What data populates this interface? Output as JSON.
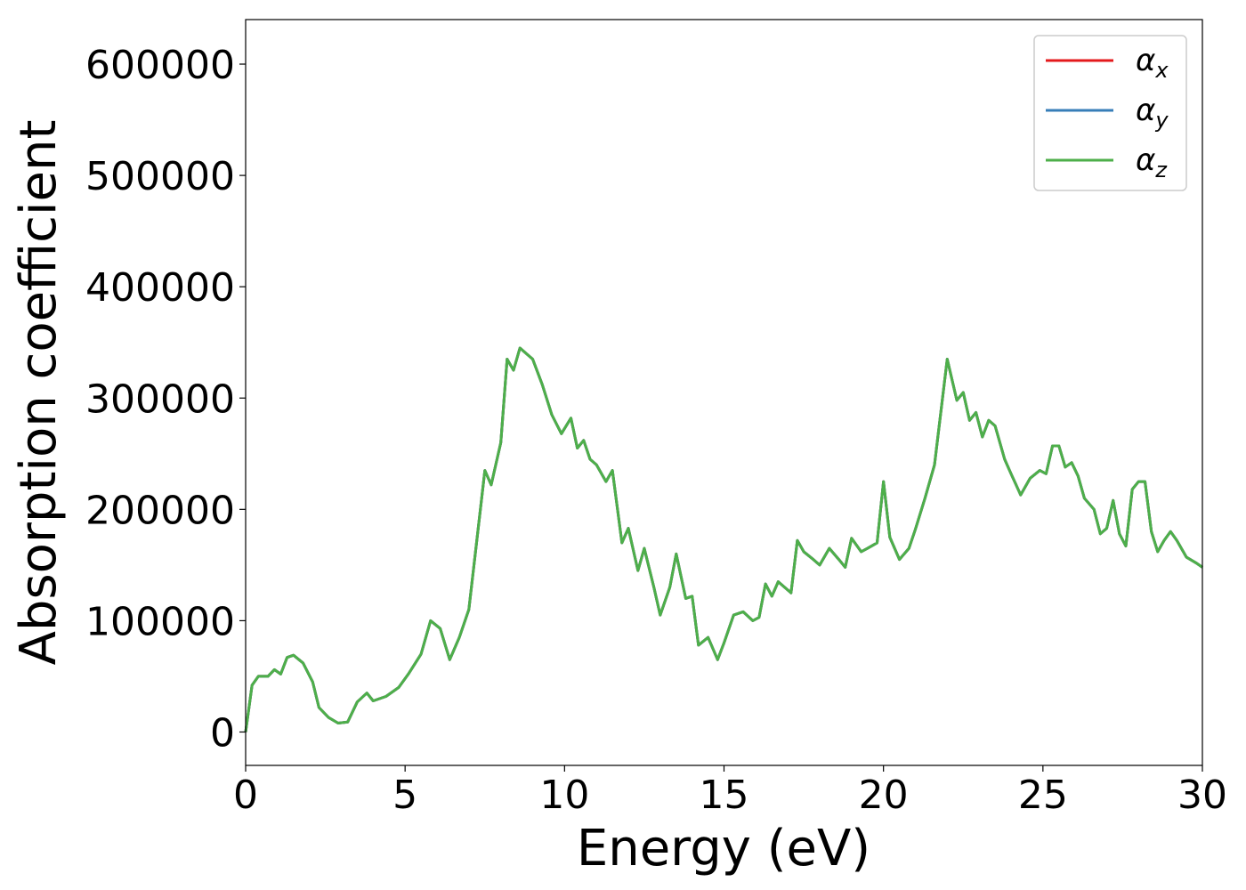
{
  "chart_data": {
    "type": "line",
    "title": "",
    "xlabel": "Energy (eV)",
    "ylabel": "Absorption coefficient",
    "xlim": [
      0,
      30
    ],
    "ylim": [
      -30000,
      640000
    ],
    "xticks": [
      "0",
      "5",
      "10",
      "15",
      "20",
      "25",
      "30"
    ],
    "yticks": [
      "0",
      "100000",
      "200000",
      "300000",
      "400000",
      "500000",
      "600000"
    ],
    "grid": false,
    "legend_position": "top-right",
    "colors": {
      "alpha_x": "#e41a1c",
      "alpha_y": "#377eb8",
      "alpha_z": "#4daf4a"
    },
    "x": [
      0,
      0.2,
      0.4,
      0.7,
      0.9,
      1.1,
      1.3,
      1.5,
      1.8,
      2.1,
      2.3,
      2.6,
      2.9,
      3.2,
      3.5,
      3.8,
      4.0,
      4.4,
      4.8,
      5.1,
      5.5,
      5.8,
      6.1,
      6.4,
      6.7,
      7.0,
      7.2,
      7.5,
      7.7,
      8.0,
      8.2,
      8.4,
      8.6,
      8.8,
      9.0,
      9.3,
      9.6,
      9.9,
      10.2,
      10.4,
      10.6,
      10.8,
      11.0,
      11.3,
      11.5,
      11.8,
      12.0,
      12.3,
      12.5,
      12.8,
      13.0,
      13.3,
      13.5,
      13.8,
      14.0,
      14.2,
      14.5,
      14.8,
      15.0,
      15.3,
      15.6,
      15.9,
      16.1,
      16.3,
      16.5,
      16.7,
      16.9,
      17.1,
      17.3,
      17.5,
      17.8,
      18.0,
      18.3,
      18.6,
      18.8,
      19.0,
      19.3,
      19.5,
      19.8,
      20.0,
      20.2,
      20.5,
      20.8,
      21.0,
      21.3,
      21.6,
      22.0,
      22.3,
      22.5,
      22.7,
      22.9,
      23.1,
      23.3,
      23.5,
      23.8,
      24.0,
      24.3,
      24.6,
      24.9,
      25.1,
      25.3,
      25.5,
      25.7,
      25.9,
      26.1,
      26.3,
      26.6,
      26.8,
      27.0,
      27.2,
      27.4,
      27.6,
      27.8,
      28.0,
      28.2,
      28.4,
      28.6,
      28.8,
      29.0,
      29.2,
      29.5,
      29.8,
      30.0
    ],
    "series": [
      {
        "name": "α_x",
        "legend_symbol": "α",
        "legend_sub": "x",
        "values": [
          0,
          42000,
          50000,
          50000,
          56000,
          52000,
          67000,
          69000,
          62000,
          45000,
          22000,
          13000,
          8000,
          9000,
          27000,
          35000,
          28000,
          32000,
          40000,
          52000,
          70000,
          100000,
          93000,
          65000,
          85000,
          110000,
          160000,
          235000,
          222000,
          260000,
          335000,
          325000,
          345000,
          340000,
          335000,
          312000,
          285000,
          268000,
          282000,
          255000,
          262000,
          245000,
          240000,
          225000,
          235000,
          170000,
          183000,
          145000,
          165000,
          130000,
          105000,
          130000,
          160000,
          120000,
          122000,
          78000,
          85000,
          65000,
          80000,
          105000,
          108000,
          100000,
          103000,
          133000,
          122000,
          135000,
          130000,
          125000,
          172000,
          162000,
          155000,
          150000,
          165000,
          155000,
          148000,
          174000,
          162000,
          165000,
          170000,
          225000,
          175000,
          155000,
          165000,
          182000,
          210000,
          240000,
          335000,
          298000,
          305000,
          280000,
          287000,
          265000,
          280000,
          275000,
          245000,
          232000,
          213000,
          228000,
          235000,
          232000,
          257000,
          257000,
          238000,
          242000,
          230000,
          210000,
          200000,
          178000,
          183000,
          208000,
          178000,
          167000,
          218000,
          225000,
          225000,
          180000,
          162000,
          172000,
          180000,
          172000,
          157000,
          152000,
          148000
        ]
      },
      {
        "name": "α_y",
        "legend_symbol": "α",
        "legend_sub": "y",
        "values": [
          0,
          42000,
          50000,
          50000,
          56000,
          52000,
          67000,
          69000,
          62000,
          45000,
          22000,
          13000,
          8000,
          9000,
          27000,
          35000,
          28000,
          32000,
          40000,
          52000,
          70000,
          100000,
          93000,
          65000,
          85000,
          110000,
          160000,
          235000,
          222000,
          260000,
          335000,
          325000,
          345000,
          340000,
          335000,
          312000,
          285000,
          268000,
          282000,
          255000,
          262000,
          245000,
          240000,
          225000,
          235000,
          170000,
          183000,
          145000,
          165000,
          130000,
          105000,
          130000,
          160000,
          120000,
          122000,
          78000,
          85000,
          65000,
          80000,
          105000,
          108000,
          100000,
          103000,
          133000,
          122000,
          135000,
          130000,
          125000,
          172000,
          162000,
          155000,
          150000,
          165000,
          155000,
          148000,
          174000,
          162000,
          165000,
          170000,
          225000,
          175000,
          155000,
          165000,
          182000,
          210000,
          240000,
          335000,
          298000,
          305000,
          280000,
          287000,
          265000,
          280000,
          275000,
          245000,
          232000,
          213000,
          228000,
          235000,
          232000,
          257000,
          257000,
          238000,
          242000,
          230000,
          210000,
          200000,
          178000,
          183000,
          208000,
          178000,
          167000,
          218000,
          225000,
          225000,
          180000,
          162000,
          172000,
          180000,
          172000,
          157000,
          152000,
          148000
        ]
      },
      {
        "name": "α_z",
        "legend_symbol": "α",
        "legend_sub": "z",
        "values": [
          0,
          42000,
          50000,
          50000,
          56000,
          52000,
          67000,
          69000,
          62000,
          45000,
          22000,
          13000,
          8000,
          9000,
          27000,
          35000,
          28000,
          32000,
          40000,
          52000,
          70000,
          100000,
          93000,
          65000,
          85000,
          110000,
          160000,
          235000,
          222000,
          260000,
          335000,
          325000,
          345000,
          340000,
          335000,
          312000,
          285000,
          268000,
          282000,
          255000,
          262000,
          245000,
          240000,
          225000,
          235000,
          170000,
          183000,
          145000,
          165000,
          130000,
          105000,
          130000,
          160000,
          120000,
          122000,
          78000,
          85000,
          65000,
          80000,
          105000,
          108000,
          100000,
          103000,
          133000,
          122000,
          135000,
          130000,
          125000,
          172000,
          162000,
          155000,
          150000,
          165000,
          155000,
          148000,
          174000,
          162000,
          165000,
          170000,
          225000,
          175000,
          155000,
          165000,
          182000,
          210000,
          240000,
          335000,
          298000,
          305000,
          280000,
          287000,
          265000,
          280000,
          275000,
          245000,
          232000,
          213000,
          228000,
          235000,
          232000,
          257000,
          257000,
          238000,
          242000,
          230000,
          210000,
          200000,
          178000,
          183000,
          208000,
          178000,
          167000,
          218000,
          225000,
          225000,
          180000,
          162000,
          172000,
          180000,
          172000,
          157000,
          152000,
          148000
        ]
      }
    ]
  }
}
